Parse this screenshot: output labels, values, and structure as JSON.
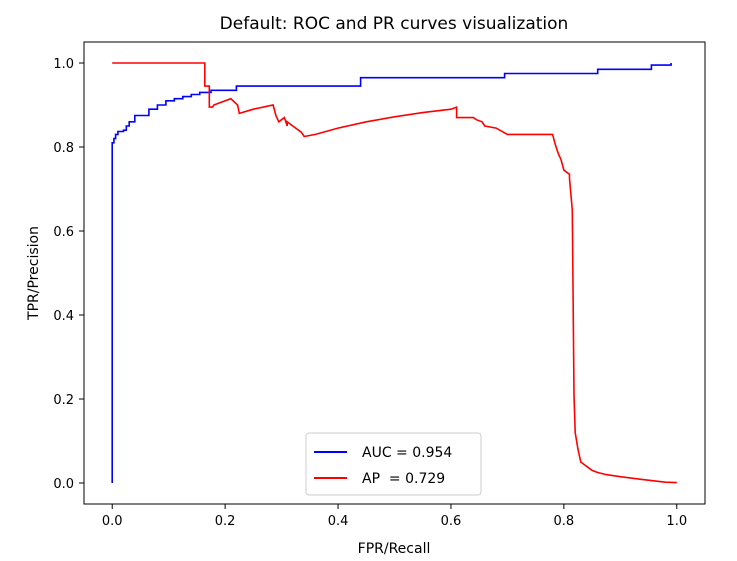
{
  "chart_data": {
    "type": "line",
    "title": "Default: ROC and PR curves visualization",
    "xlabel": "FPR/Recall",
    "ylabel": "TPR/Precision",
    "xlim": [
      -0.05,
      1.05
    ],
    "ylim": [
      -0.05,
      1.05
    ],
    "xticks": [
      0.0,
      0.2,
      0.4,
      0.6,
      0.8,
      1.0
    ],
    "yticks": [
      0.0,
      0.2,
      0.4,
      0.6,
      0.8,
      1.0
    ],
    "xtick_labels": [
      "0.0",
      "0.2",
      "0.4",
      "0.6",
      "0.8",
      "1.0"
    ],
    "ytick_labels": [
      "0.0",
      "0.2",
      "0.4",
      "0.6",
      "0.8",
      "1.0"
    ],
    "grid": false,
    "legend": "lower center",
    "series": [
      {
        "name": "AUC = 0.954",
        "label": "AUC = 0.954",
        "color": "#0000ff",
        "drawstyle": "steps-post",
        "x": [
          0.0,
          0.0,
          0.003,
          0.006,
          0.01,
          0.02,
          0.025,
          0.03,
          0.04,
          0.065,
          0.08,
          0.095,
          0.11,
          0.125,
          0.14,
          0.155,
          0.175,
          0.205,
          0.22,
          0.22,
          0.44,
          0.695,
          0.86,
          0.955,
          0.99
        ],
        "y": [
          0.0,
          0.81,
          0.82,
          0.83,
          0.837,
          0.84,
          0.85,
          0.86,
          0.875,
          0.89,
          0.9,
          0.91,
          0.915,
          0.92,
          0.925,
          0.93,
          0.935,
          0.935,
          0.94,
          0.945,
          0.965,
          0.975,
          0.985,
          0.995,
          1.0
        ]
      },
      {
        "name": "AP  = 0.729",
        "label": "AP  = 0.729",
        "color": "#ff0000",
        "drawstyle": "line",
        "x": [
          0.0,
          0.164,
          0.164,
          0.172,
          0.172,
          0.172,
          0.178,
          0.18,
          0.21,
          0.222,
          0.225,
          0.25,
          0.285,
          0.29,
          0.295,
          0.3,
          0.305,
          0.31,
          0.31,
          0.325,
          0.33,
          0.335,
          0.34,
          0.36,
          0.4,
          0.45,
          0.5,
          0.55,
          0.6,
          0.61,
          0.61,
          0.64,
          0.645,
          0.655,
          0.66,
          0.68,
          0.7,
          0.73,
          0.78,
          0.785,
          0.79,
          0.795,
          0.8,
          0.81,
          0.81,
          0.815,
          0.818,
          0.82,
          0.825,
          0.83,
          0.835,
          0.84,
          0.85,
          0.86,
          0.875,
          0.9,
          0.94,
          0.98,
          1.0
        ],
        "y": [
          1.0,
          1.0,
          0.945,
          0.945,
          0.935,
          0.895,
          0.895,
          0.9,
          0.915,
          0.9,
          0.88,
          0.89,
          0.9,
          0.875,
          0.86,
          0.865,
          0.87,
          0.85,
          0.86,
          0.845,
          0.84,
          0.835,
          0.825,
          0.83,
          0.845,
          0.86,
          0.872,
          0.882,
          0.89,
          0.895,
          0.87,
          0.87,
          0.865,
          0.86,
          0.85,
          0.845,
          0.83,
          0.83,
          0.83,
          0.805,
          0.785,
          0.77,
          0.745,
          0.735,
          0.725,
          0.65,
          0.21,
          0.12,
          0.08,
          0.05,
          0.045,
          0.04,
          0.03,
          0.025,
          0.02,
          0.015,
          0.008,
          0.002,
          0.001
        ]
      }
    ]
  }
}
